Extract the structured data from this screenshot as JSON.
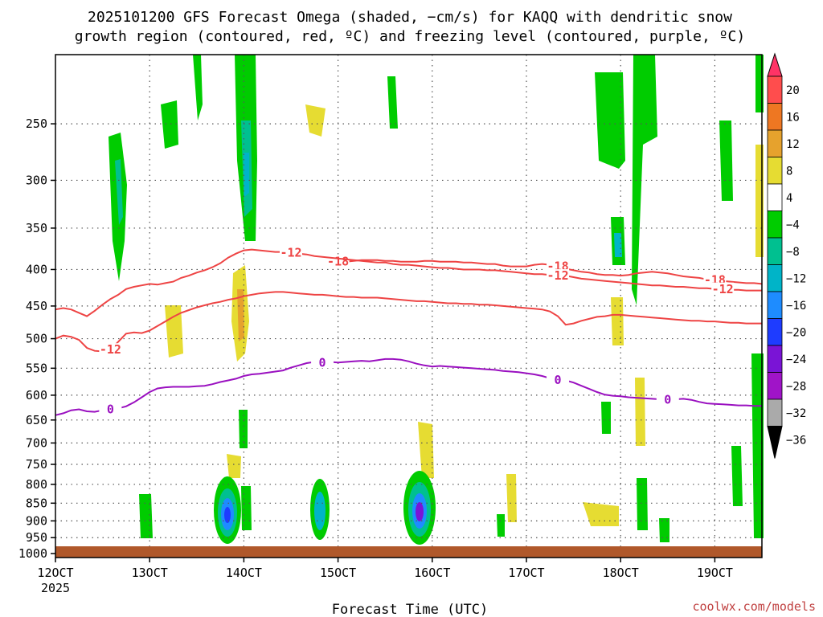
{
  "chart_data": {
    "type": "heatmap",
    "title_line1": "2025101200 GFS Forecast Omega (shaded, −cm/s) for KAQQ with dendritic snow",
    "title_line2": "growth region (contoured, red, ºC) and freezing level (contoured, purple, ºC)",
    "xlabel": "Forecast Time (UTC)",
    "watermark": "coolwx.com/models",
    "x_ticks": [
      {
        "h": 0,
        "label": "12OCT",
        "sub": "2025"
      },
      {
        "h": 24,
        "label": "13OCT"
      },
      {
        "h": 48,
        "label": "14OCT"
      },
      {
        "h": 72,
        "label": "15OCT"
      },
      {
        "h": 96,
        "label": "16OCT"
      },
      {
        "h": 120,
        "label": "17OCT"
      },
      {
        "h": 144,
        "label": "18OCT"
      },
      {
        "h": 168,
        "label": "19OCT"
      }
    ],
    "xlim_hours": [
      0,
      180
    ],
    "y_ticks": [
      250,
      300,
      350,
      400,
      450,
      500,
      550,
      600,
      650,
      700,
      750,
      800,
      850,
      900,
      950,
      1000
    ],
    "ylim_hpa": [
      200,
      1013
    ],
    "ylog": true,
    "grid": true,
    "colorbar": {
      "levels": [
        "20",
        "16",
        "12",
        "8",
        "4",
        "−4",
        "−8",
        "−12",
        "−16",
        "−20",
        "−24",
        "−28",
        "−32",
        "−36"
      ],
      "colors": [
        "#ff3366",
        "#ff4d4d",
        "#ee7722",
        "#e6a22d",
        "#e6dc32",
        "#ffffff",
        "#00cc00",
        "#00c090",
        "#00b4c8",
        "#1e8cff",
        "#1e3cff",
        "#7a14d6",
        "#a014c8",
        "#aaaaaa",
        "#000000"
      ]
    },
    "series": [
      {
        "label": "-18",
        "color": "#ee4444",
        "x": [
          70,
          72,
          74,
          76,
          78,
          80,
          82,
          84,
          86,
          88,
          90,
          92,
          94,
          96,
          98,
          100,
          102,
          104,
          106,
          108,
          110,
          112,
          114,
          116,
          118,
          120,
          122,
          124,
          126,
          128,
          130,
          132,
          134,
          136,
          138,
          140,
          142,
          144,
          146,
          148,
          150,
          152,
          154,
          156,
          158,
          160,
          162,
          164,
          166,
          168,
          170,
          172,
          174,
          176,
          178,
          180
        ],
        "y": [
          392,
          390,
          390,
          389,
          388,
          388,
          388,
          389,
          389,
          390,
          390,
          390,
          389,
          389,
          390,
          390,
          390,
          391,
          391,
          392,
          393,
          393,
          395,
          396,
          396,
          396,
          394,
          393,
          394,
          396,
          399,
          401,
          403,
          404,
          406,
          407,
          407,
          408,
          407,
          405,
          404,
          403,
          404,
          405,
          407,
          409,
          410,
          411,
          413,
          414,
          415,
          416,
          417,
          418,
          418,
          419
        ]
      },
      {
        "label": "-12",
        "color": "#ee4444",
        "x": [
          0,
          2,
          4,
          6,
          8,
          10,
          12,
          14,
          16,
          18,
          20,
          22,
          24,
          26,
          28,
          30,
          32,
          34,
          36,
          38,
          40,
          42,
          44,
          46,
          48,
          50,
          52,
          54,
          56,
          58,
          60,
          62,
          64,
          66,
          68,
          70,
          72,
          74,
          76,
          78,
          80,
          82,
          84,
          86,
          88,
          90,
          92,
          94,
          96,
          98,
          100,
          102,
          104,
          106,
          108,
          110,
          112,
          114,
          116,
          118,
          120,
          122,
          124,
          126,
          128,
          130,
          132,
          134,
          136,
          138,
          140,
          142,
          144,
          146,
          148,
          150,
          152,
          154,
          156,
          158,
          160,
          162,
          164,
          166,
          168,
          170,
          172,
          174,
          176,
          178,
          180
        ],
        "y": [
          455,
          453,
          455,
          460,
          465,
          457,
          448,
          440,
          434,
          426,
          423,
          421,
          419,
          420,
          418,
          416,
          411,
          408,
          404,
          401,
          397,
          392,
          385,
          380,
          376,
          375,
          376,
          377,
          378,
          378,
          379,
          380,
          381,
          383,
          384,
          385,
          386,
          387,
          388,
          389,
          390,
          391,
          391,
          393,
          394,
          394,
          395,
          396,
          397,
          398,
          398,
          399,
          400,
          400,
          400,
          401,
          401,
          402,
          403,
          404,
          405,
          406,
          406,
          407,
          408,
          408,
          410,
          412,
          413,
          414,
          415,
          416,
          417,
          418,
          419,
          420,
          421,
          421,
          422,
          423,
          423,
          424,
          425,
          425,
          426,
          426,
          427,
          427,
          428,
          428,
          428
        ]
      }
    ],
    "series_extra": [
      {
        "label": "-12",
        "color": "#ee4444",
        "x": [
          0,
          2,
          4,
          6,
          8,
          10,
          12,
          14,
          16,
          18,
          20,
          22,
          24,
          26,
          28,
          30,
          32,
          34,
          36,
          38,
          40,
          42,
          44,
          46,
          48,
          50,
          52,
          54,
          56,
          58,
          60,
          62,
          64,
          66,
          68,
          70,
          72,
          74,
          76,
          78,
          80,
          82,
          84,
          86,
          88,
          90,
          92,
          94,
          96,
          98,
          100,
          102,
          104,
          106,
          108,
          110,
          112,
          114,
          116,
          118,
          120,
          122,
          124,
          126,
          128,
          130,
          132,
          134,
          136,
          138,
          140,
          142,
          144,
          146,
          148,
          150,
          152,
          154,
          156,
          158,
          160,
          162,
          164,
          166,
          168,
          170,
          172,
          174,
          176,
          178,
          180
        ],
        "y": [
          500,
          495,
          497,
          502,
          515,
          520,
          521,
          518,
          505,
          492,
          490,
          491,
          487,
          480,
          473,
          466,
          460,
          456,
          452,
          449,
          446,
          444,
          441,
          439,
          436,
          434,
          432,
          431,
          430,
          430,
          431,
          432,
          433,
          434,
          434,
          435,
          436,
          437,
          437,
          438,
          438,
          438,
          439,
          440,
          441,
          442,
          443,
          443,
          444,
          445,
          446,
          446,
          447,
          447,
          448,
          448,
          449,
          450,
          451,
          452,
          453,
          454,
          455,
          458,
          465,
          478,
          476,
          472,
          469,
          466,
          465,
          463,
          463,
          464,
          465,
          466,
          467,
          468,
          469,
          470,
          471,
          472,
          472,
          473,
          473,
          474,
          475,
          475,
          476,
          476,
          476
        ]
      }
    ],
    "freezing": {
      "label": "0",
      "color": "#9a10c0",
      "x": [
        0,
        2,
        4,
        6,
        8,
        10,
        12,
        14,
        16,
        18,
        20,
        22,
        24,
        26,
        28,
        30,
        32,
        34,
        36,
        38,
        40,
        42,
        44,
        46,
        48,
        50,
        52,
        54,
        56,
        58,
        60,
        62,
        64,
        66,
        68,
        70,
        72,
        74,
        76,
        78,
        80,
        82,
        84,
        86,
        88,
        90,
        92,
        94,
        96,
        98,
        100,
        102,
        104,
        106,
        108,
        110,
        112,
        114,
        116,
        118,
        120,
        122,
        124,
        126,
        128,
        130,
        132,
        134,
        136,
        138,
        140,
        142,
        144,
        146,
        148,
        150,
        152,
        154,
        156,
        158,
        160,
        162,
        164,
        166,
        168,
        170,
        172,
        174,
        176,
        178,
        180
      ],
      "y": [
        640,
        636,
        630,
        628,
        632,
        633,
        630,
        628,
        626,
        622,
        614,
        604,
        594,
        587,
        585,
        584,
        584,
        584,
        583,
        582,
        579,
        575,
        572,
        569,
        564,
        561,
        560,
        558,
        556,
        554,
        549,
        545,
        541,
        539,
        540,
        539,
        540,
        539,
        538,
        537,
        538,
        536,
        534,
        534,
        535,
        538,
        542,
        545,
        547,
        546,
        547,
        548,
        549,
        550,
        551,
        552,
        553,
        555,
        556,
        557,
        559,
        561,
        564,
        568,
        571,
        572,
        576,
        582,
        588,
        594,
        599,
        601,
        602,
        604,
        605,
        606,
        607,
        608,
        609,
        608,
        607,
        609,
        613,
        616,
        617,
        618,
        619,
        620,
        620,
        621,
        621
      ]
    }
  }
}
